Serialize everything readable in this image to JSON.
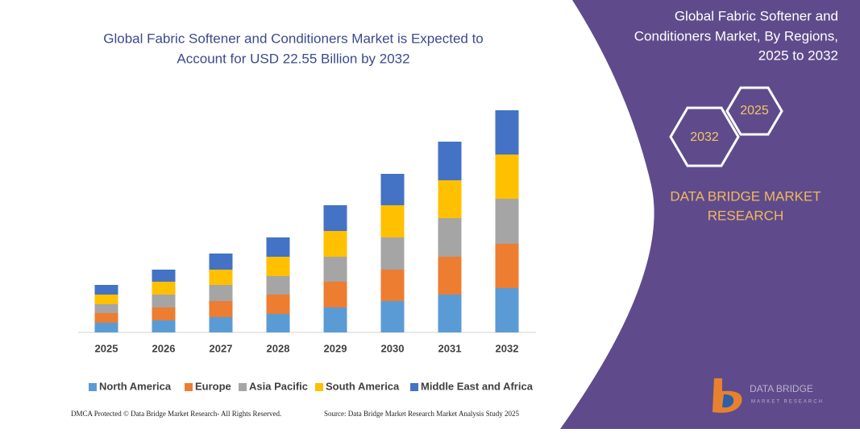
{
  "chart_data": {
    "type": "stacked_bar",
    "title": [
      "Global Fabric Softener and Conditioners Market is Expected to",
      "Account for USD 22.55 Billion by 2032"
    ],
    "categories": [
      "2025",
      "2026",
      "2027",
      "2028",
      "2029",
      "2030",
      "2031",
      "2032"
    ],
    "series": [
      {
        "name": "North America",
        "color": "#5b9bd5",
        "values": [
          12,
          15,
          19,
          23,
          31,
          39,
          47,
          55
        ]
      },
      {
        "name": "Europe",
        "color": "#ed7d31",
        "values": [
          12,
          16,
          20,
          24,
          32,
          39,
          47,
          55
        ]
      },
      {
        "name": "Asia Pacific",
        "color": "#a5a5a5",
        "values": [
          11,
          16,
          20,
          23,
          31,
          40,
          48,
          56
        ]
      },
      {
        "name": "South America",
        "color": "#ffc000",
        "values": [
          12,
          16,
          19,
          24,
          32,
          40,
          47,
          55
        ]
      },
      {
        "name": "Middle East and Africa",
        "color": "#4472c4",
        "values": [
          12,
          15,
          20,
          24,
          32,
          39,
          48,
          55
        ]
      }
    ],
    "ylim": [
      0,
      280
    ],
    "legend": "bottom"
  },
  "panel": {
    "title": [
      "Global Fabric Softener and",
      "Conditioners Market, By Regions,",
      "2025 to 2032"
    ],
    "badges": [
      "2025",
      "2032"
    ],
    "brand": [
      "DATA BRIDGE MARKET",
      "RESEARCH"
    ],
    "logo": [
      "DATA BRIDGE",
      "MARKET RESEARCH"
    ]
  },
  "footer": {
    "left": "DMCA Protected © Data Bridge Market Research- All Rights Reserved.",
    "right": "Source: Data Bridge Market Research Market Analysis Study 2025"
  }
}
